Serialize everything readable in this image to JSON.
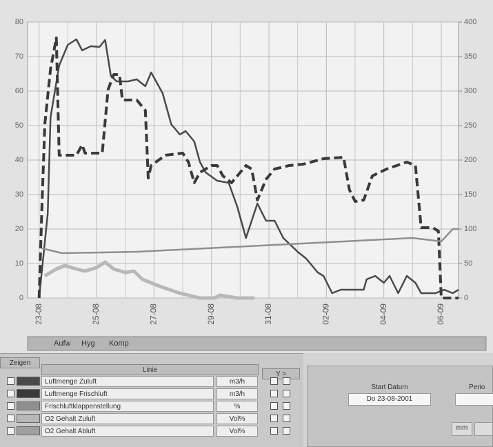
{
  "chart_data": {
    "type": "line",
    "xlim": [
      -0.4,
      14.6
    ],
    "xticks": [
      {
        "value": 0,
        "label": "23-08"
      },
      {
        "value": 2,
        "label": "25-08"
      },
      {
        "value": 4,
        "label": "27-08"
      },
      {
        "value": 6,
        "label": "29-08"
      },
      {
        "value": 8,
        "label": "31-08"
      },
      {
        "value": 10,
        "label": "02-09"
      },
      {
        "value": 12,
        "label": "04-09"
      },
      {
        "value": 14,
        "label": "06-09"
      }
    ],
    "ylim": [
      0,
      80
    ],
    "yticks": [
      0,
      10,
      20,
      30,
      40,
      50,
      60,
      70,
      80
    ],
    "y2lim": [
      0,
      400
    ],
    "y2ticks": [
      0,
      50,
      100,
      150,
      200,
      250,
      300,
      350,
      400
    ],
    "grid": true,
    "series": [
      {
        "name": "Luftmenge Zuluft",
        "color": "#4a4a4a",
        "style": "solid",
        "axis": "y2",
        "x": [
          0,
          0.3,
          0.4,
          0.7,
          1.0,
          1.3,
          1.5,
          1.8,
          2.1,
          2.3,
          2.5,
          2.7,
          3.1,
          3.4,
          3.7,
          3.9,
          4.3,
          4.6,
          4.9,
          5.1,
          5.4,
          5.6,
          5.8,
          6.2,
          6.6,
          6.9,
          7.2,
          7.6,
          7.9,
          8.2,
          8.5,
          9.0,
          9.3,
          9.7,
          9.9,
          10.2,
          10.5,
          10.9,
          11.3,
          11.4,
          11.7,
          12.0,
          12.2,
          12.5,
          12.8,
          13.1,
          13.3,
          13.8,
          14.1,
          14.4,
          14.6
        ],
        "values": [
          0,
          122,
          262,
          337,
          367,
          375,
          359,
          365,
          364,
          374,
          322,
          314,
          314,
          317,
          307,
          327,
          297,
          252,
          237,
          242,
          227,
          197,
          182,
          170,
          167,
          132,
          87,
          137,
          112,
          112,
          87,
          67,
          57,
          37,
          32,
          7,
          12,
          12,
          12,
          27,
          32,
          22,
          32,
          7,
          32,
          22,
          7,
          7,
          12,
          7,
          12
        ]
      },
      {
        "name": "Luftmenge Frischluft",
        "color": "#3a3a3a",
        "style": "dashed",
        "axis": "y2",
        "x": [
          0,
          0.1,
          0.2,
          0.4,
          0.6,
          0.7,
          0.9,
          1.3,
          1.5,
          1.6,
          2.2,
          2.4,
          2.6,
          2.8,
          2.9,
          3.4,
          3.7,
          3.8,
          3.9,
          4.4,
          5.0,
          5.2,
          5.4,
          5.6,
          6.0,
          6.2,
          6.4,
          6.7,
          6.9,
          7.2,
          7.4,
          7.6,
          7.9,
          8.2,
          8.7,
          9.2,
          9.9,
          10.6,
          10.8,
          11.0,
          11.3,
          11.6,
          12.1,
          12.8,
          13.1,
          13.3,
          13.7,
          13.9,
          14.0,
          14.6
        ],
        "values": [
          0,
          132,
          252,
          332,
          377,
          207,
          207,
          207,
          222,
          210,
          210,
          302,
          324,
          324,
          287,
          287,
          272,
          174,
          192,
          207,
          210,
          197,
          167,
          182,
          192,
          192,
          177,
          167,
          177,
          192,
          187,
          142,
          172,
          187,
          192,
          194,
          202,
          204,
          157,
          140,
          142,
          177,
          187,
          197,
          192,
          102,
          102,
          97,
          0,
          0
        ]
      },
      {
        "name": "Frischluftklappenstellung",
        "color": "#8f8f8f",
        "style": "solid",
        "axis": "y",
        "x": [
          0.1,
          0.8,
          3.4,
          5.8,
          8.2,
          10.6,
          13.0,
          14.0,
          14.4,
          14.6
        ],
        "values": [
          14.4,
          13,
          13.4,
          14.4,
          15.4,
          16.4,
          17.4,
          16.4,
          20,
          20
        ]
      },
      {
        "name": "O2 Gehalt Zuluft",
        "color": "#b8b8b8",
        "style": "thick",
        "axis": "y",
        "x": [
          0.2,
          0.6,
          0.9,
          1.3,
          1.6,
          2.0,
          2.3,
          2.6,
          3.0,
          3.3,
          3.6,
          4.2,
          4.9,
          5.6,
          6.1,
          6.3,
          6.9,
          7.5
        ],
        "values": [
          6.4,
          8.4,
          9.4,
          8.4,
          7.8,
          8.8,
          10.4,
          8.4,
          7.4,
          7.8,
          5.4,
          3.4,
          1.4,
          0,
          0,
          0.8,
          0,
          0
        ]
      }
    ]
  },
  "tabs": [
    "Aufw",
    "Hyg",
    "Komp"
  ],
  "table": {
    "show_header": "Zeigen",
    "line_header": "Linie",
    "y_header": "Y >",
    "units": [
      "m3/h",
      "m3/h",
      "%",
      "Vol%",
      "Vol%"
    ],
    "extra_row": {
      "name": "O2 Gehalt Abluft",
      "color": "#a0a0a0"
    }
  },
  "panel": {
    "start_label": "Start Datum",
    "start_value": "Do 23-08-2001",
    "period_label": "Perio",
    "button": "mm"
  }
}
